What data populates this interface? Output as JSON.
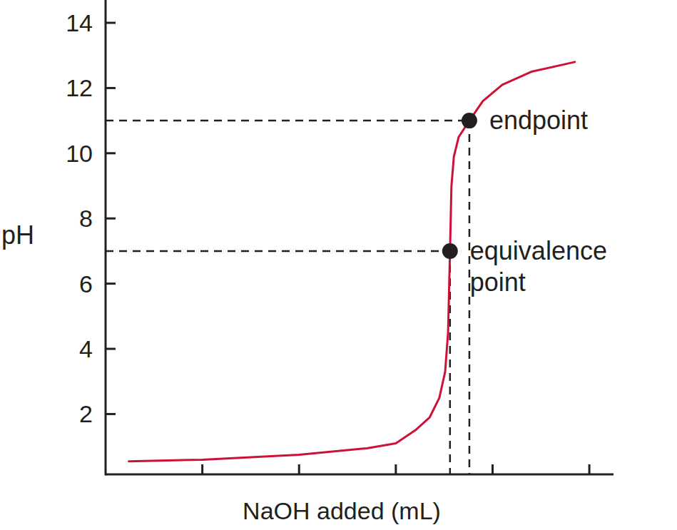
{
  "chart_data": {
    "type": "line",
    "x_label": "NaOH added (mL)",
    "y_label": "pH",
    "color": "#cc1236",
    "x": [
      2.4,
      10,
      20,
      27,
      30,
      32,
      33.5,
      34.5,
      35.1,
      35.4,
      35.6,
      35.75,
      36,
      36.5,
      37.6,
      39,
      41,
      44,
      48.5
    ],
    "values": [
      0.55,
      0.6,
      0.75,
      0.95,
      1.1,
      1.5,
      1.9,
      2.5,
      3.3,
      4.5,
      7.0,
      9.0,
      9.9,
      10.5,
      11.0,
      11.6,
      12.1,
      12.5,
      12.8
    ],
    "xlim": [
      0,
      52.5
    ],
    "ylim": [
      0.15,
      14.7
    ],
    "xticks": [
      10,
      20,
      30,
      40,
      50
    ],
    "yticks": [
      2,
      4,
      6,
      8,
      10,
      12,
      14
    ],
    "tick_labels": "y",
    "annotations": [
      {
        "label": "endpoint",
        "x": 37.6,
        "y": 11.0
      },
      {
        "label": "equivalence point",
        "x": 35.6,
        "y": 7.0
      }
    ]
  }
}
